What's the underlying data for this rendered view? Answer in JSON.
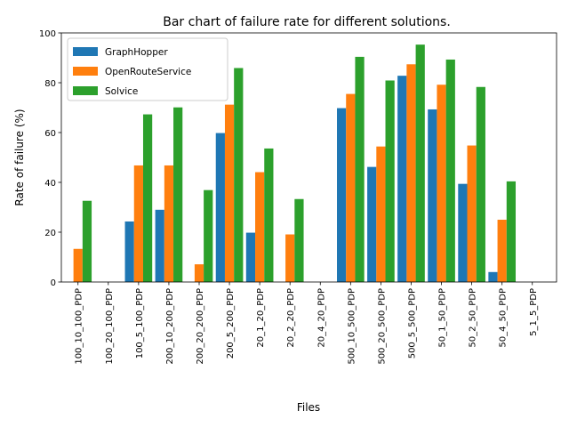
{
  "chart_data": {
    "type": "bar",
    "title": "Bar chart of failure rate for different solutions.",
    "xlabel": "Files",
    "ylabel": "Rate of failure (%)",
    "ylim": [
      0,
      100
    ],
    "yticks": [
      0,
      20,
      40,
      60,
      80,
      100
    ],
    "grid": false,
    "legend_position": "top-left",
    "categories": [
      "100_10_100_PDP",
      "100_20_100_PDP",
      "100_5_100_PDP",
      "200_10_200_PDP",
      "200_20_200_PDP",
      "200_5_200_PDP",
      "20_1_20_PDP",
      "20_2_20_PDP",
      "20_4_20_PDP",
      "500_10_500_PDP",
      "500_20_500_PDP",
      "500_5_500_PDP",
      "50_1_50_PDP",
      "50_2_50_PDP",
      "50_4_50_PDP",
      "5_1_5_PDP"
    ],
    "series": [
      {
        "name": "GraphHopper",
        "color": "#1f77b4",
        "values": [
          0,
          0,
          24.3,
          29,
          0,
          59.8,
          19.8,
          0,
          0,
          69.8,
          46.2,
          82.8,
          69.3,
          39.4,
          4,
          0
        ]
      },
      {
        "name": "OpenRouteService",
        "color": "#ff7f0e",
        "values": [
          13.3,
          0,
          46.8,
          46.8,
          7.1,
          71.2,
          44.1,
          19.1,
          0,
          75.5,
          54.4,
          87.4,
          79.2,
          54.8,
          25,
          0
        ]
      },
      {
        "name": "Solvice",
        "color": "#2ca02c",
        "values": [
          32.6,
          0,
          67.3,
          70.1,
          36.9,
          85.9,
          53.6,
          33.3,
          0,
          90.4,
          80.9,
          95.3,
          89.3,
          78.3,
          40.4,
          0
        ]
      }
    ]
  }
}
